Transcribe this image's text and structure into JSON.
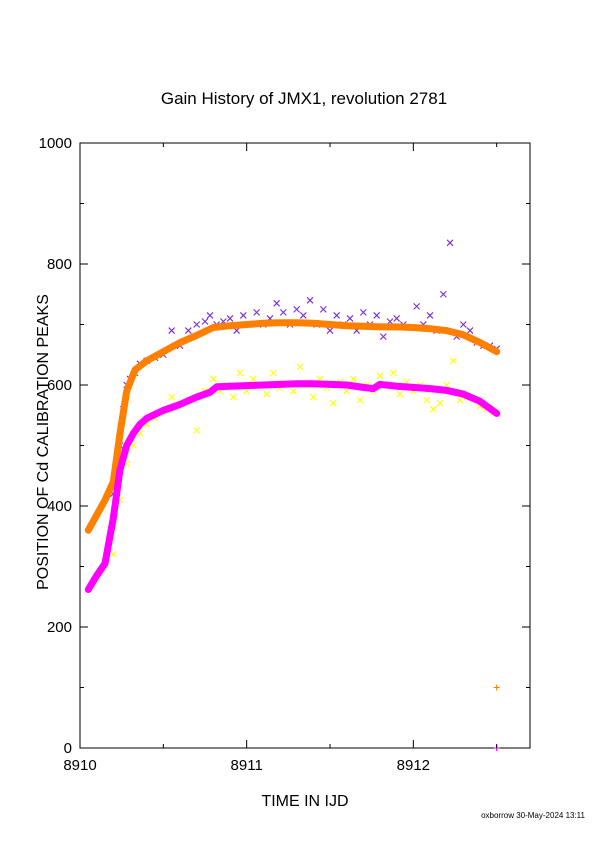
{
  "chart_data": {
    "type": "scatter",
    "title": "Gain History of JMX1, revolution 2781",
    "xlabel": "TIME IN IJD",
    "ylabel": "POSITION OF Cd CALIBRATION PEAKS",
    "xlim": [
      8910,
      8912.7
    ],
    "ylim": [
      0,
      1000
    ],
    "x_ticks": [
      8910,
      8911,
      8912
    ],
    "x_tick_labels": [
      "8910",
      "8911",
      "8912"
    ],
    "y_ticks": [
      0,
      200,
      400,
      600,
      800,
      1000
    ],
    "y_tick_labels": [
      "0",
      "200",
      "400",
      "600",
      "800",
      "1000"
    ],
    "grid": false,
    "legend": "none",
    "footer": "oxborrow 30-May-2024 13:11",
    "series": [
      {
        "marker": "cross",
        "color": "#7a2be2",
        "x": [
          8910.2,
          8910.24,
          8910.26,
          8910.28,
          8910.3,
          8910.33,
          8910.36,
          8910.4,
          8910.45,
          8910.5,
          8910.55,
          8910.6,
          8910.65,
          8910.7,
          8910.75,
          8910.78,
          8910.82,
          8910.86,
          8910.9,
          8910.94,
          8910.98,
          8911.02,
          8911.06,
          8911.1,
          8911.14,
          8911.18,
          8911.22,
          8911.26,
          8911.3,
          8911.34,
          8911.38,
          8911.42,
          8911.46,
          8911.5,
          8911.54,
          8911.58,
          8911.62,
          8911.66,
          8911.7,
          8911.74,
          8911.78,
          8911.82,
          8911.86,
          8911.9,
          8911.94,
          8911.98,
          8912.02,
          8912.06,
          8912.1,
          8912.14,
          8912.18,
          8912.22,
          8912.26,
          8912.3,
          8912.34,
          8912.38,
          8912.42,
          8912.46,
          8912.5
        ],
        "y": [
          420,
          500,
          560,
          600,
          610,
          620,
          635,
          640,
          645,
          650,
          690,
          665,
          690,
          700,
          705,
          715,
          700,
          705,
          710,
          690,
          715,
          700,
          720,
          700,
          710,
          735,
          720,
          700,
          725,
          715,
          740,
          700,
          725,
          690,
          715,
          700,
          710,
          690,
          720,
          700,
          715,
          680,
          705,
          710,
          700,
          695,
          730,
          700,
          715,
          690,
          750,
          835,
          680,
          700,
          690,
          670,
          665,
          665,
          660
        ]
      },
      {
        "marker": "cross",
        "color": "#ffff00",
        "x": [
          8910.2,
          8910.24,
          8910.28,
          8910.32,
          8910.36,
          8910.4,
          8910.45,
          8910.5,
          8910.55,
          8910.6,
          8910.65,
          8910.7,
          8910.75,
          8910.8,
          8910.84,
          8910.88,
          8910.92,
          8910.96,
          8911.0,
          8911.04,
          8911.08,
          8911.12,
          8911.16,
          8911.2,
          8911.24,
          8911.28,
          8911.32,
          8911.36,
          8911.4,
          8911.44,
          8911.48,
          8911.52,
          8911.56,
          8911.6,
          8911.64,
          8911.68,
          8911.72,
          8911.76,
          8911.8,
          8911.84,
          8911.88,
          8911.92,
          8911.96,
          8912.0,
          8912.04,
          8912.08,
          8912.12,
          8912.16,
          8912.2,
          8912.24,
          8912.28,
          8912.32,
          8912.36,
          8912.4,
          8912.44,
          8912.48
        ],
        "y": [
          320,
          410,
          470,
          500,
          520,
          535,
          545,
          555,
          580,
          570,
          575,
          525,
          590,
          610,
          590,
          600,
          580,
          620,
          590,
          610,
          600,
          585,
          620,
          595,
          600,
          590,
          630,
          600,
          580,
          610,
          595,
          570,
          605,
          590,
          610,
          575,
          600,
          590,
          615,
          600,
          620,
          585,
          605,
          590,
          600,
          575,
          560,
          570,
          600,
          640,
          575,
          580,
          575,
          565,
          560,
          555
        ]
      },
      {
        "marker": "thick-line",
        "color": "#ff7f00",
        "x": [
          8910.05,
          8910.1,
          8910.15,
          8910.2,
          8910.24,
          8910.28,
          8910.33,
          8910.4,
          8910.5,
          8910.6,
          8910.7,
          8910.8,
          8910.9,
          8911.0,
          8911.1,
          8911.2,
          8911.3,
          8911.4,
          8911.5,
          8911.6,
          8911.7,
          8911.8,
          8911.9,
          8912.0,
          8912.1,
          8912.2,
          8912.3,
          8912.4,
          8912.5
        ],
        "y": [
          360,
          385,
          410,
          440,
          520,
          590,
          625,
          640,
          655,
          670,
          682,
          695,
          698,
          700,
          702,
          703,
          703,
          702,
          700,
          698,
          697,
          696,
          696,
          695,
          693,
          690,
          683,
          670,
          655
        ]
      },
      {
        "marker": "thick-line",
        "color": "#ff00ff",
        "x": [
          8910.05,
          8910.1,
          8910.15,
          8910.2,
          8910.24,
          8910.28,
          8910.32,
          8910.36,
          8910.4,
          8910.5,
          8910.6,
          8910.7,
          8910.78,
          8910.82,
          8910.9,
          8911.0,
          8911.1,
          8911.2,
          8911.3,
          8911.4,
          8911.5,
          8911.6,
          8911.7,
          8911.76,
          8911.8,
          8911.9,
          8912.0,
          8912.1,
          8912.2,
          8912.3,
          8912.4,
          8912.5
        ],
        "y": [
          262,
          285,
          305,
          380,
          460,
          500,
          520,
          535,
          545,
          558,
          568,
          580,
          588,
          597,
          598,
          599,
          600,
          601,
          602,
          602,
          601,
          600,
          596,
          594,
          601,
          598,
          596,
          594,
          591,
          585,
          573,
          553
        ]
      },
      {
        "marker": "plus",
        "color": "#ff7f00",
        "x": [
          8912.5
        ],
        "y": [
          100
        ]
      },
      {
        "marker": "plus",
        "color": "#ff00ff",
        "x": [
          8912.5
        ],
        "y": [
          0
        ]
      }
    ]
  }
}
